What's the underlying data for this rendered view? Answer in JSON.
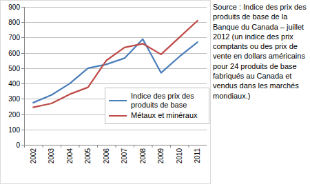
{
  "chart_data": {
    "type": "line",
    "categories": [
      "2002",
      "2003",
      "2004",
      "2005",
      "2006",
      "2007",
      "2008",
      "2009",
      "2010",
      "2011"
    ],
    "series": [
      {
        "name": "Indice des prix des produits de base",
        "color": "#4a7ebb",
        "values": [
          275,
          325,
          400,
          500,
          525,
          565,
          690,
          470,
          575,
          670
        ]
      },
      {
        "name": "Métaux et minéraux",
        "color": "#be4b48",
        "values": [
          245,
          270,
          330,
          375,
          550,
          635,
          660,
          590,
          700,
          810
        ]
      }
    ],
    "ylim": [
      0,
      900
    ],
    "yticks": [
      0,
      100,
      200,
      300,
      400,
      500,
      600,
      700,
      800,
      900
    ],
    "grid": true,
    "legend": "lower right",
    "annotation": "Source : Indice des prix des produits de base de la Banque du Canada – juillet 2012 (un indice des prix comptants ou des prix de vente en dollars américains pour 24 produits de base fabriqués au Canada et vendus dans les marchés mondiaux.)"
  }
}
